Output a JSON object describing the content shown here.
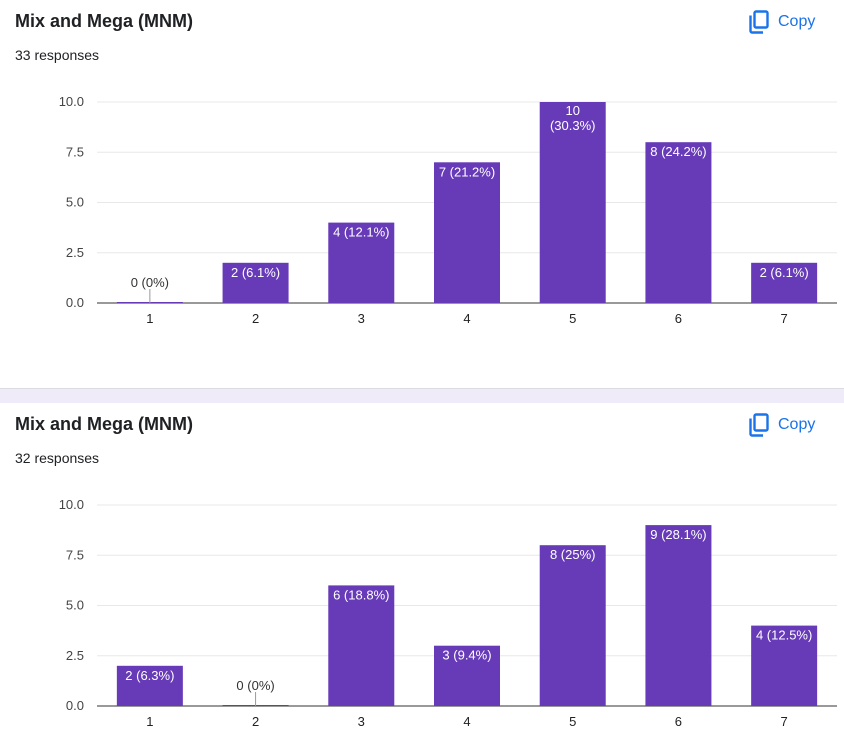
{
  "colors": {
    "bar": "#673ab7",
    "accent": "#1a73e8",
    "grid": "#e8e8e8",
    "axis": "#444444",
    "separator": "#f0ebf8"
  },
  "icons": {
    "copy": "copy-icon"
  },
  "cards": [
    {
      "title": "Mix and Mega (MNM)",
      "responses": "33 responses",
      "copy_label": "Copy"
    },
    {
      "title": "Mix and Mega (MNM)",
      "responses": "32 responses",
      "copy_label": "Copy"
    }
  ],
  "chart_data": [
    {
      "type": "bar",
      "title": "Mix and Mega (MNM)",
      "categories": [
        "1",
        "2",
        "3",
        "4",
        "5",
        "6",
        "7"
      ],
      "values": [
        0,
        2,
        4,
        7,
        10,
        8,
        2
      ],
      "data_labels": [
        "0 (0%)",
        "2 (6.1%)",
        "4 (12.1%)",
        "7 (21.2%)",
        "10 (30.3%)",
        "8 (24.2%)",
        "2 (6.1%)"
      ],
      "yticks": [
        "0.0",
        "2.5",
        "5.0",
        "7.5",
        "10.0"
      ],
      "ylim": [
        0,
        10
      ],
      "xlabel": "",
      "ylabel": ""
    },
    {
      "type": "bar",
      "title": "Mix and Mega (MNM)",
      "categories": [
        "1",
        "2",
        "3",
        "4",
        "5",
        "6",
        "7"
      ],
      "values": [
        2,
        0,
        6,
        3,
        8,
        9,
        4
      ],
      "data_labels": [
        "2 (6.3%)",
        "0 (0%)",
        "6 (18.8%)",
        "3 (9.4%)",
        "8 (25%)",
        "9 (28.1%)",
        "4 (12.5%)"
      ],
      "yticks": [
        "0.0",
        "2.5",
        "5.0",
        "7.5",
        "10.0"
      ],
      "ylim": [
        0,
        10
      ],
      "xlabel": "",
      "ylabel": ""
    }
  ]
}
